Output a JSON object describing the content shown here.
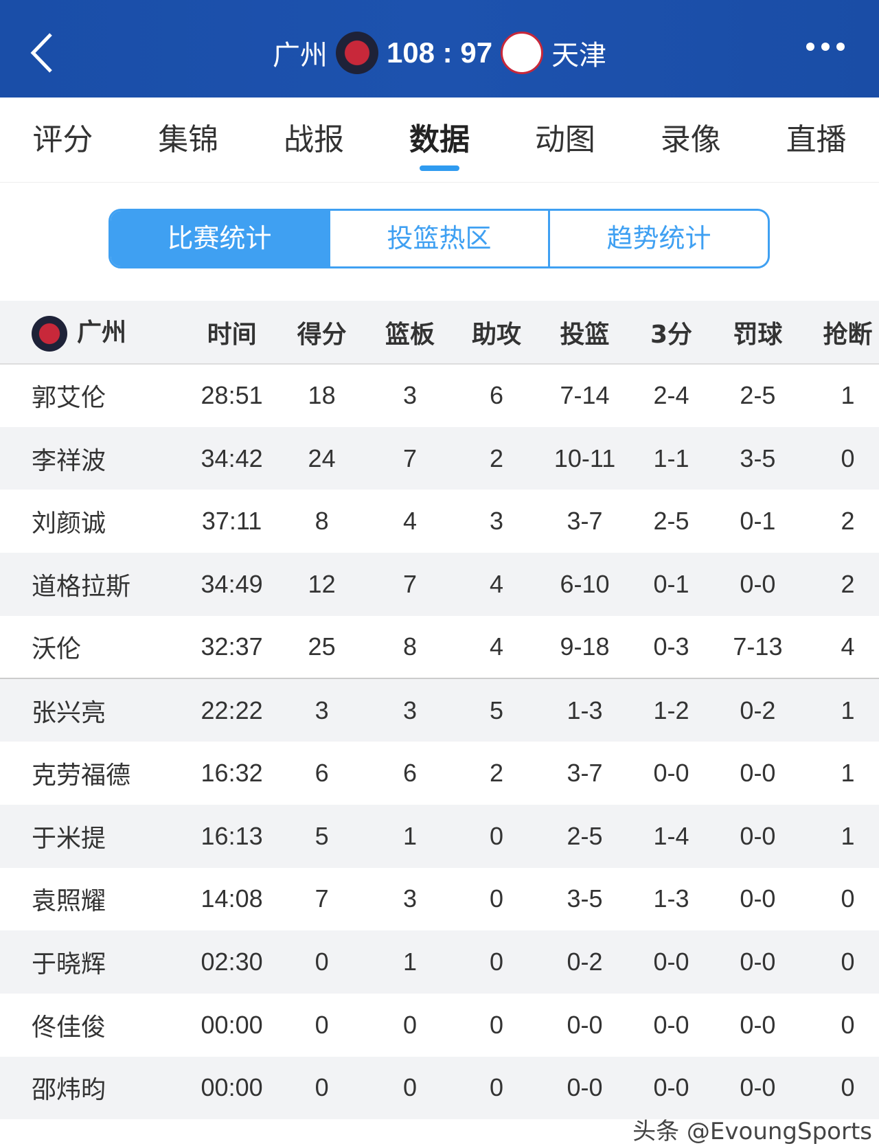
{
  "header": {
    "home_team": "广州",
    "score": "108 : 97",
    "away_team": "天津",
    "home_logo": "龍獅",
    "away_logo": "PIONEERS",
    "back_icon": "chevron-left-icon",
    "more_icon": "more-horizontal-icon"
  },
  "tabs": [
    {
      "label": "评分"
    },
    {
      "label": "集锦"
    },
    {
      "label": "战报"
    },
    {
      "label": "数据",
      "active": true
    },
    {
      "label": "动图"
    },
    {
      "label": "录像"
    },
    {
      "label": "直播"
    }
  ],
  "segments": [
    "比赛统计",
    "投篮热区",
    "趋势统计"
  ],
  "colors": {
    "header_bg": "#1d52ae",
    "accent": "#3fa0f2"
  },
  "table": {
    "team": "广州",
    "columns": [
      "时间",
      "得分",
      "篮板",
      "助攻",
      "投篮",
      "3分",
      "罚球",
      "抢断"
    ],
    "rows": [
      [
        "郭艾伦",
        "28:51",
        "18",
        "3",
        "6",
        "7-14",
        "2-4",
        "2-5",
        "1"
      ],
      [
        "李祥波",
        "34:42",
        "24",
        "7",
        "2",
        "10-11",
        "1-1",
        "3-5",
        "0"
      ],
      [
        "刘颜诚",
        "37:11",
        "8",
        "4",
        "3",
        "3-7",
        "2-5",
        "0-1",
        "2"
      ],
      [
        "道格拉斯",
        "34:49",
        "12",
        "7",
        "4",
        "6-10",
        "0-1",
        "0-0",
        "2"
      ],
      [
        "沃伦",
        "32:37",
        "25",
        "8",
        "4",
        "9-18",
        "0-3",
        "7-13",
        "4"
      ],
      [
        "张兴亮",
        "22:22",
        "3",
        "3",
        "5",
        "1-3",
        "1-2",
        "0-2",
        "1"
      ],
      [
        "克劳福德",
        "16:32",
        "6",
        "6",
        "2",
        "3-7",
        "0-0",
        "0-0",
        "1"
      ],
      [
        "于米提",
        "16:13",
        "5",
        "1",
        "0",
        "2-5",
        "1-4",
        "0-0",
        "1"
      ],
      [
        "袁照耀",
        "14:08",
        "7",
        "3",
        "0",
        "3-5",
        "1-3",
        "0-0",
        "0"
      ],
      [
        "于晓辉",
        "02:30",
        "0",
        "1",
        "0",
        "0-2",
        "0-0",
        "0-0",
        "0"
      ],
      [
        "佟佳俊",
        "00:00",
        "0",
        "0",
        "0",
        "0-0",
        "0-0",
        "0-0",
        "0"
      ],
      [
        "邵炜昀",
        "00:00",
        "0",
        "0",
        "0",
        "0-0",
        "0-0",
        "0-0",
        "0"
      ]
    ]
  },
  "watermark": "头条 @EvoungSports"
}
